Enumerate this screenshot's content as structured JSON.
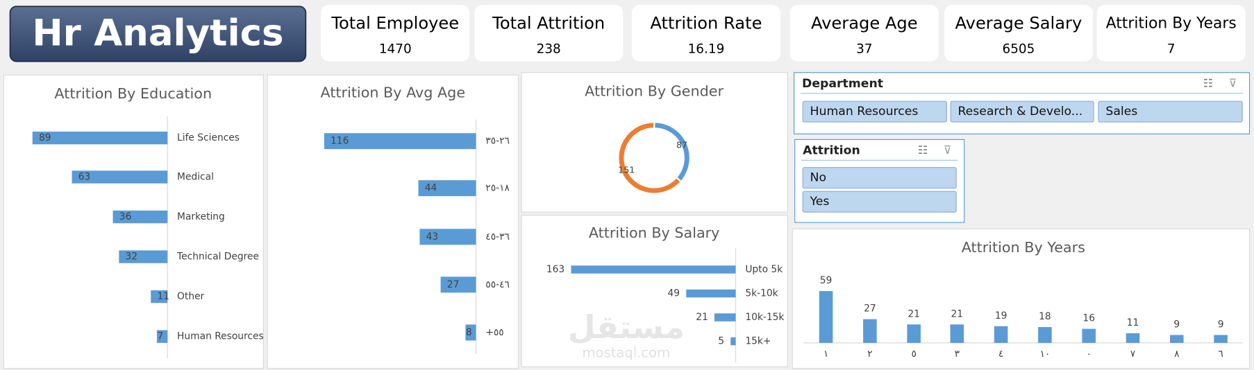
{
  "header": {
    "title": "Hr Analytics"
  },
  "kpis": [
    {
      "label": "Total Employee",
      "value": 1470
    },
    {
      "label": "Total Attrition",
      "value": 238
    },
    {
      "label": "Attrition Rate",
      "value": 16.19
    },
    {
      "label": "Average Age",
      "value": 37
    },
    {
      "label": "Average Salary",
      "value": 6505
    },
    {
      "label": "Attrition By Years",
      "value": 7
    }
  ],
  "slicers": [
    {
      "title": "Department",
      "items": [
        "Human Resources",
        "Research & Develo...",
        "Sales"
      ]
    },
    {
      "title": "Attrition",
      "items": [
        "No",
        "Yes"
      ]
    }
  ],
  "watermark": [
    "مستقل",
    "mostaql.com"
  ],
  "chart_data": [
    {
      "type": "bar",
      "orientation": "horizontal",
      "title": "Attrition By Education",
      "color": "#5b9bd5",
      "categories": [
        "Life Sciences",
        "Medical",
        "Marketing",
        "Technical Degree",
        "Other",
        "Human Resources"
      ],
      "values": [
        89,
        63,
        36,
        32,
        11,
        7
      ]
    },
    {
      "type": "bar",
      "orientation": "horizontal",
      "title": "Attrition By Avg Age",
      "color": "#5b9bd5",
      "categories": [
        "٢٦-٣٥",
        "١٨-٢٥",
        "٣٦-٤٥",
        "٤٦-٥٥",
        "+٥٥"
      ],
      "values": [
        116,
        44,
        43,
        27,
        8
      ]
    },
    {
      "type": "pie",
      "title": "Attrition By Gender",
      "colors": [
        "#5b9bd5",
        "#ed7d31"
      ],
      "values": [
        87,
        151
      ]
    },
    {
      "type": "bar",
      "orientation": "horizontal",
      "title": "Attrition By Salary",
      "color": "#5b9bd5",
      "categories": [
        "Upto 5k",
        "5k-10k",
        "10k-15k",
        "15k+"
      ],
      "values": [
        163,
        49,
        21,
        5
      ]
    },
    {
      "type": "bar",
      "orientation": "vertical",
      "title": "Attrition By Years",
      "color": "#5b9bd5",
      "categories": [
        "١",
        "٢",
        "٥",
        "٣",
        "٤",
        "١٠",
        "٠",
        "٧",
        "٨",
        "٦"
      ],
      "values": [
        59,
        27,
        21,
        21,
        19,
        18,
        16,
        11,
        9,
        9
      ]
    }
  ]
}
